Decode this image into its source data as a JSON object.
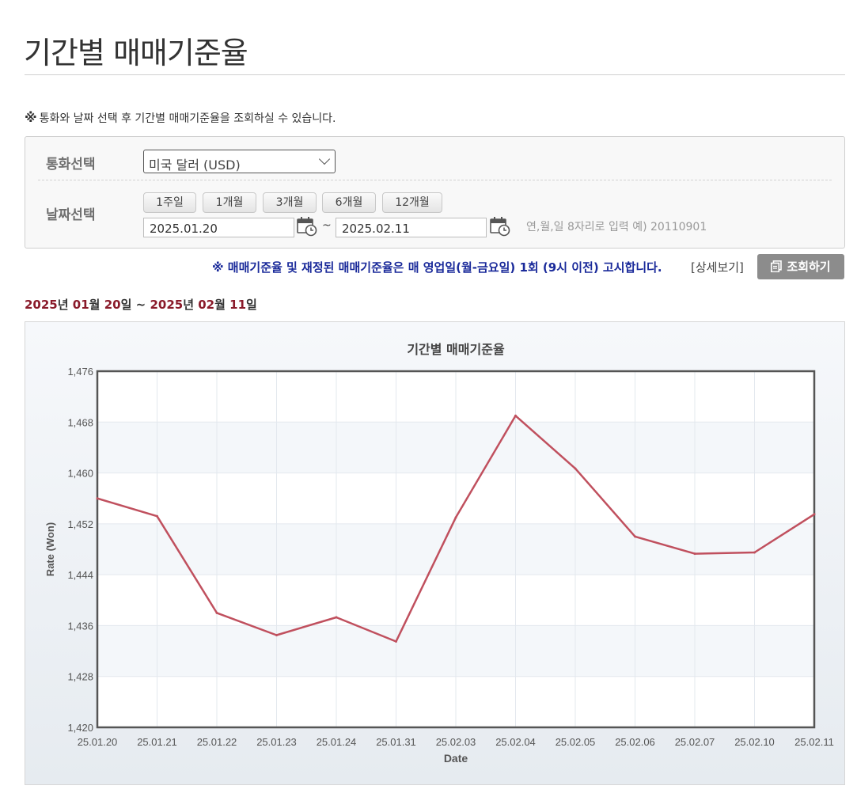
{
  "page": {
    "title": "기간별 매매기준율",
    "notice_mark": "※",
    "notice": "통화와 날짜 선택 후 기간별 매매기준율을 조회하실 수 있습니다."
  },
  "search": {
    "currency_label": "통화선택",
    "currency_value": "미국 달러 (USD)",
    "date_label": "날짜선택",
    "period_buttons": [
      "1주일",
      "1개월",
      "3개월",
      "6개월",
      "12개월"
    ],
    "start_date": "2025.01.20",
    "tilde": "~",
    "end_date": "2025.02.11",
    "date_hint": "연,월,일 8자리로 입력 예) 20110901"
  },
  "policy_note": "※ 매매기준율 및 재정된 매매기준율은 매 영업일(월-금요일) 1회 (9시 이전) 고시합니다.",
  "detail_link": "[상세보기]",
  "query_button": "조회하기",
  "range": {
    "start_year": "2025",
    "start_year_unit": "년",
    "start_month": "01",
    "start_month_unit": "월",
    "start_day": "20",
    "start_day_unit": "일",
    "separator": "~",
    "end_year": "2025",
    "end_year_unit": "년",
    "end_month": "02",
    "end_month_unit": "월",
    "end_day": "11",
    "end_day_unit": "일"
  },
  "colors": {
    "line": "#c0505e",
    "accent_date": "#8a1a2a",
    "policy_note": "#1a2a9a"
  },
  "chart_data": {
    "type": "line",
    "title": "기간별 매매기준율",
    "xlabel": "Date",
    "ylabel": "Rate (Won)",
    "ylim": [
      1420,
      1476
    ],
    "yticks": [
      1420,
      1428,
      1436,
      1444,
      1452,
      1460,
      1468,
      1476
    ],
    "ytick_labels": [
      "1,420",
      "1,428",
      "1,436",
      "1,444",
      "1,452",
      "1,460",
      "1,468",
      "1,476"
    ],
    "categories": [
      "25.01.20",
      "25.01.21",
      "25.01.22",
      "25.01.23",
      "25.01.24",
      "25.01.31",
      "25.02.03",
      "25.02.04",
      "25.02.05",
      "25.02.06",
      "25.02.07",
      "25.02.10",
      "25.02.11"
    ],
    "series": [
      {
        "values": [
          1456.0,
          1453.2,
          1438.0,
          1434.5,
          1437.3,
          1433.5,
          1453.0,
          1469.0,
          1460.7,
          1450.0,
          1447.3,
          1447.5,
          1453.5
        ]
      }
    ],
    "grid": true,
    "legend": "none"
  }
}
